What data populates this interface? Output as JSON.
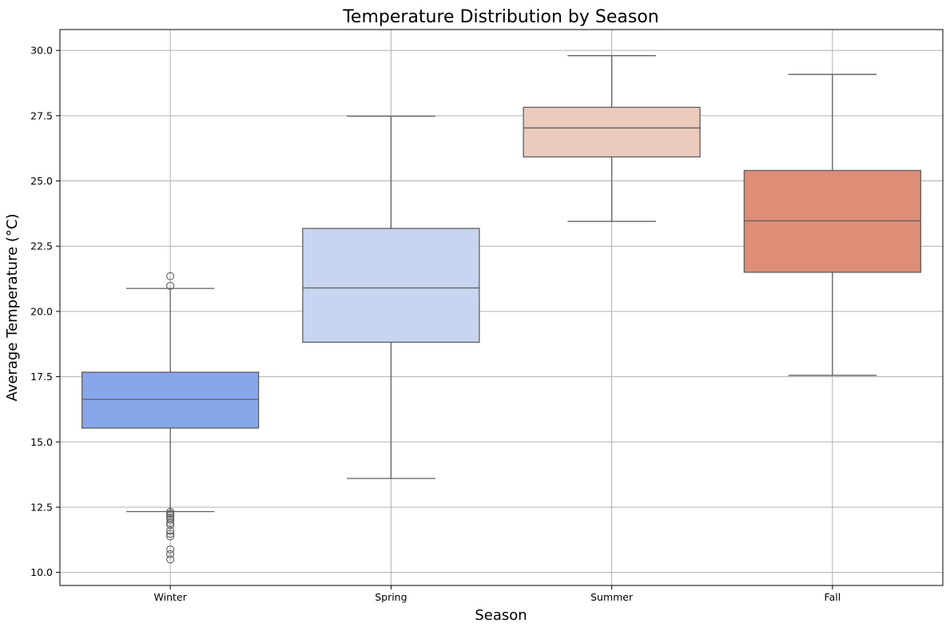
{
  "chart_data": {
    "type": "box",
    "title": "Temperature Distribution by Season",
    "xlabel": "Season",
    "ylabel": "Average Temperature (°C)",
    "ylim": [
      9.5,
      30.8
    ],
    "yticks": [
      10.0,
      12.5,
      15.0,
      17.5,
      20.0,
      22.5,
      25.0,
      27.5,
      30.0
    ],
    "ytick_labels": [
      "10.0",
      "12.5",
      "15.0",
      "17.5",
      "20.0",
      "22.5",
      "25.0",
      "27.5",
      "30.0"
    ],
    "grid": true,
    "categories": [
      "Winter",
      "Spring",
      "Summer",
      "Fall"
    ],
    "boxes": [
      {
        "category": "Winter",
        "whisker_low": 12.33,
        "q1": 15.53,
        "median": 16.63,
        "q3": 17.67,
        "whisker_high": 20.88,
        "color": "#88a6ea",
        "outliers": [
          21.35,
          20.98,
          12.32,
          12.25,
          12.18,
          12.1,
          12.02,
          11.9,
          11.82,
          11.6,
          11.48,
          11.38,
          10.88,
          10.7,
          10.5
        ]
      },
      {
        "category": "Spring",
        "whisker_low": 13.6,
        "q1": 18.82,
        "median": 20.9,
        "q3": 23.18,
        "whisker_high": 27.48,
        "color": "#c7d5f0",
        "outliers": []
      },
      {
        "category": "Summer",
        "whisker_low": 23.45,
        "q1": 25.92,
        "median": 27.03,
        "q3": 27.82,
        "whisker_high": 29.8,
        "color": "#eacbbe",
        "outliers": []
      },
      {
        "category": "Fall",
        "whisker_low": 17.55,
        "q1": 21.5,
        "median": 23.47,
        "q3": 25.4,
        "whisker_high": 29.08,
        "color": "#de8d76",
        "outliers": []
      }
    ]
  }
}
